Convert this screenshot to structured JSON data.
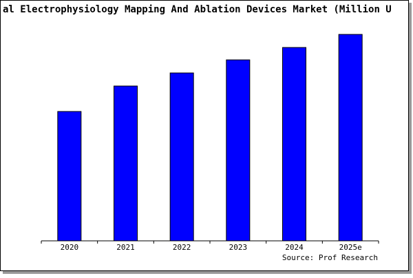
{
  "chart_data": {
    "type": "bar",
    "title": "al Electrophysiology Mapping And Ablation Devices Market (Million U",
    "categories": [
      "2020",
      "2021",
      "2022",
      "2023",
      "2024",
      "2025e"
    ],
    "values": [
      188,
      225,
      244,
      263,
      281,
      300
    ],
    "color": "#0000ff",
    "ylim": [
      0,
      302
    ],
    "source": "Source: Prof Research"
  }
}
